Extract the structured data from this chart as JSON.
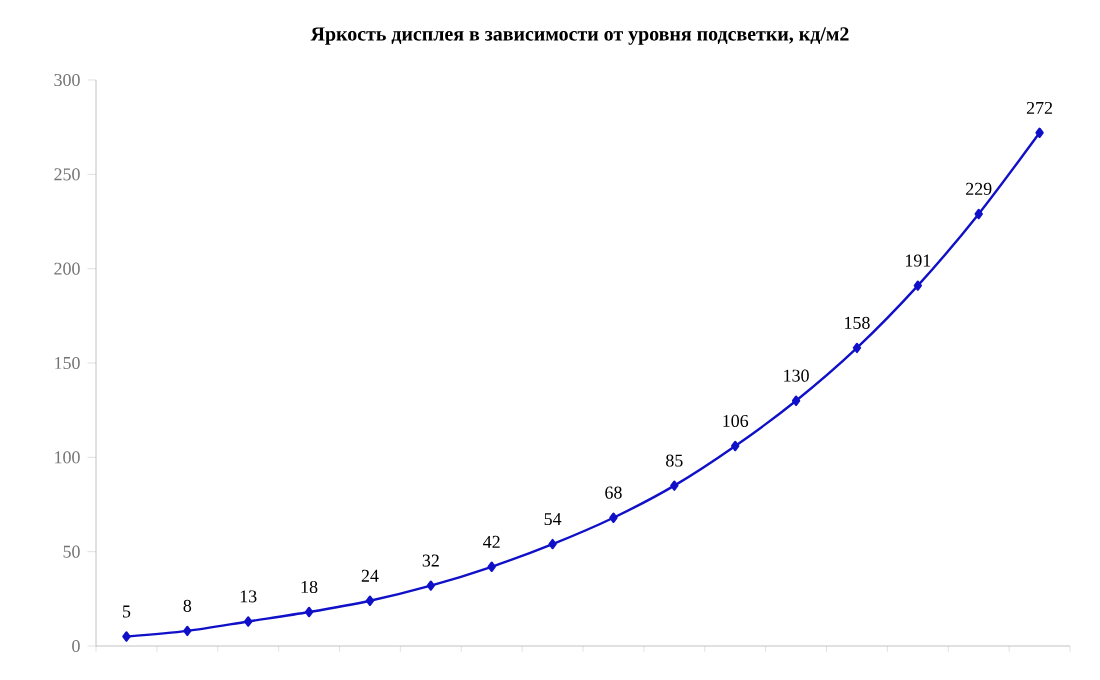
{
  "chart_data": {
    "type": "line",
    "title": "Яркость дисплея в зависимости от уровня подсветки, кд/м2",
    "categories": [
      null,
      null,
      null,
      null,
      null,
      null,
      null,
      null,
      null,
      null,
      null,
      null,
      null,
      null,
      null,
      null
    ],
    "values": [
      5,
      8,
      13,
      18,
      24,
      32,
      42,
      54,
      68,
      85,
      106,
      130,
      158,
      191,
      229,
      272
    ],
    "color": "#1010c8",
    "marker": "diamond",
    "data_labels": true,
    "tick_labels": "y",
    "ylim": [
      0,
      300
    ],
    "yticks": [
      0,
      50,
      100,
      150,
      200,
      250,
      300
    ]
  }
}
